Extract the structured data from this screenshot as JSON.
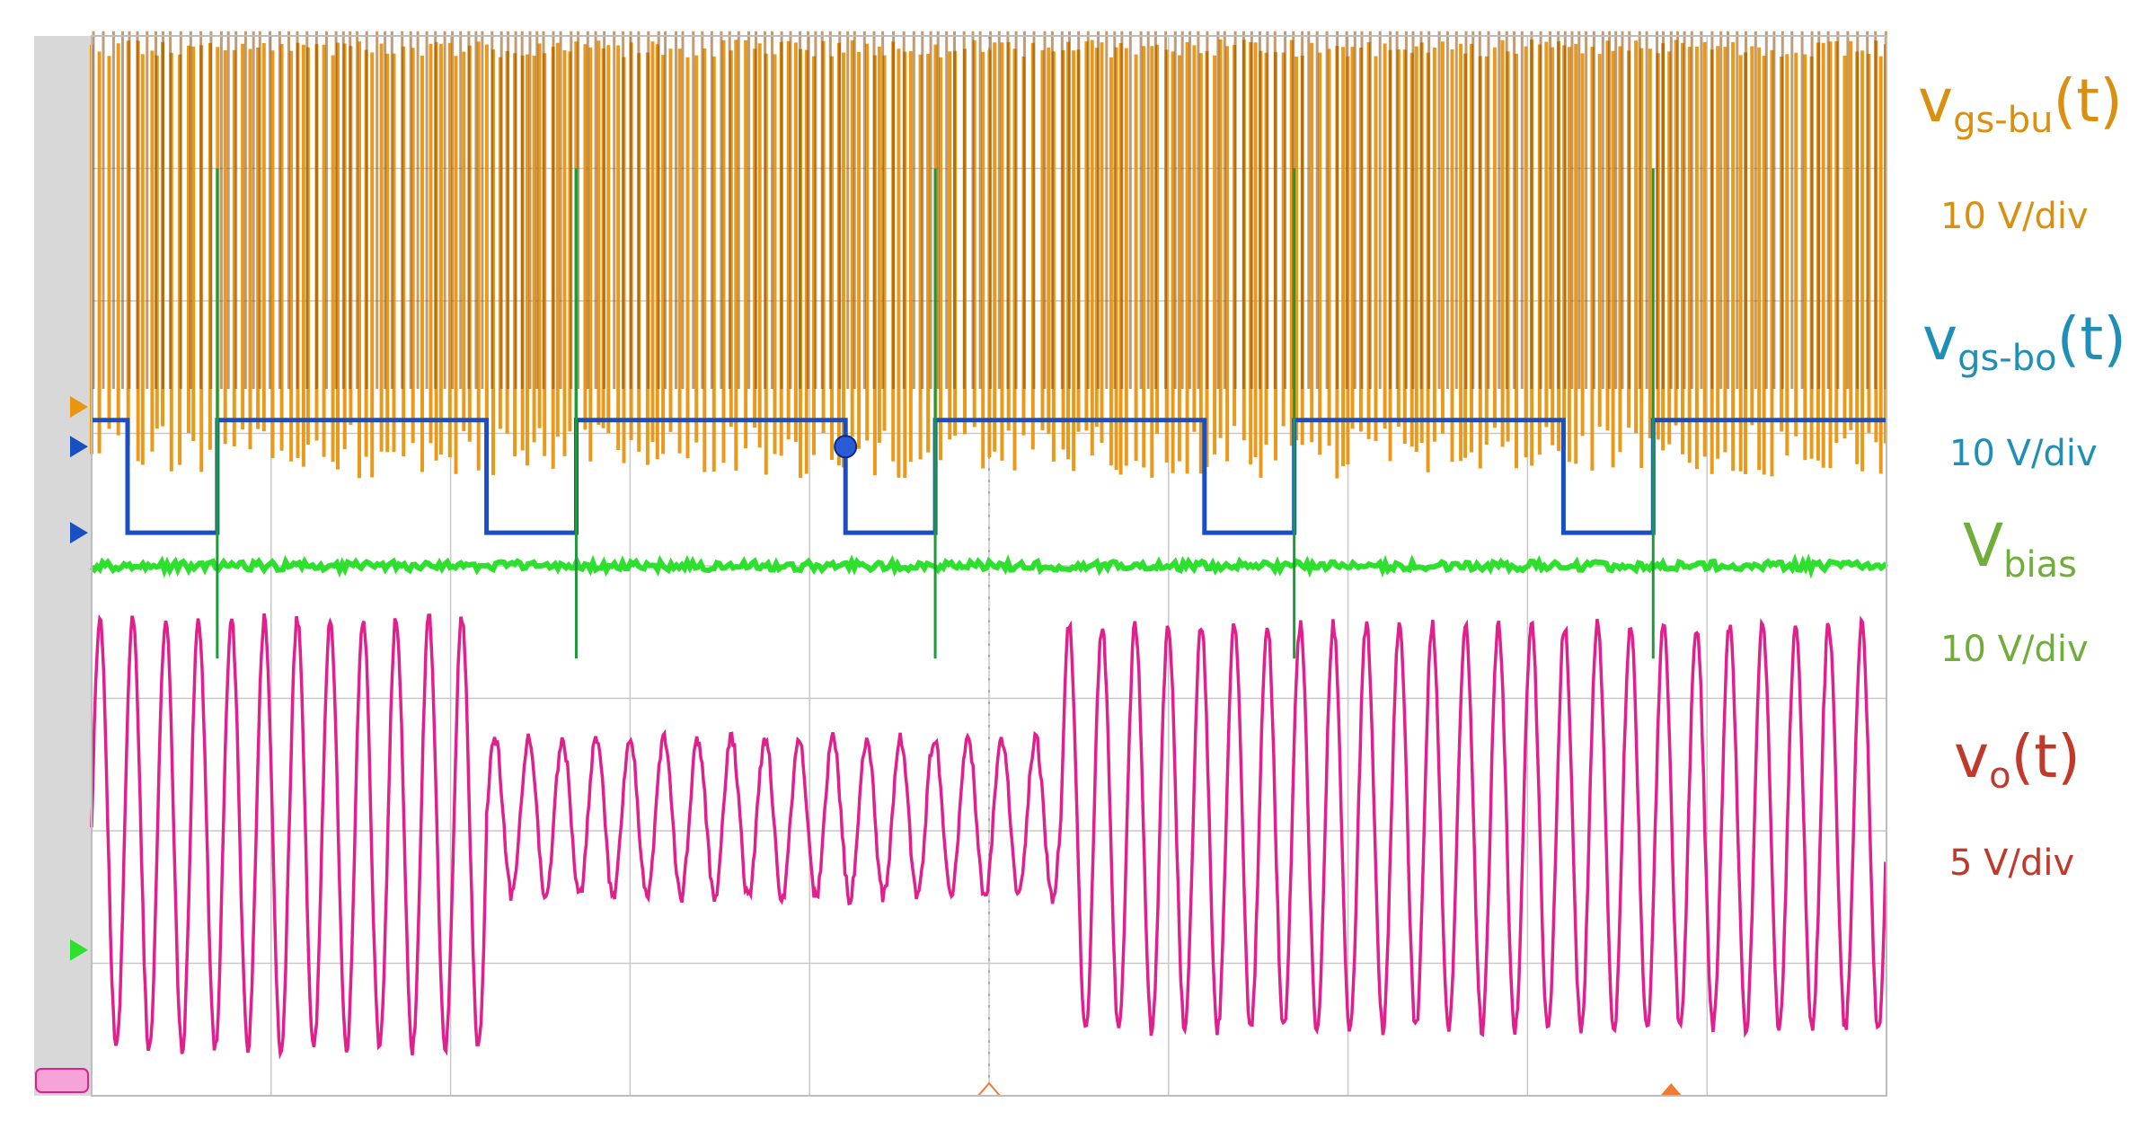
{
  "chart_data": {
    "type": "line",
    "title": "",
    "xlabel": "",
    "ylabel": "",
    "grid": true,
    "grid_divisions": {
      "x": 10,
      "y": 8
    },
    "channels": [
      {
        "id": "ch1",
        "symbol_main": "v",
        "symbol_sub": "gs-bu",
        "symbol_suffix": "(t)",
        "scale": "10 V/div",
        "color": "#e8950f",
        "description_pattern": "high-frequency PWM gate pulses",
        "level_low_div": 5.2,
        "level_high_div": 7.9
      },
      {
        "id": "ch2",
        "symbol_main": "v",
        "symbol_sub": "gs-bo",
        "symbol_suffix": "(t)",
        "scale": "10 V/div",
        "color": "#1a4fc4",
        "level_high_div": 5.1,
        "level_low_div": 4.25,
        "transitions_x_div": [
          0.2,
          0.7,
          2.2,
          2.7,
          4.2,
          4.7,
          6.2,
          6.7,
          8.2,
          8.7
        ],
        "start_state": "high"
      },
      {
        "id": "ch3",
        "symbol_main": "V",
        "symbol_sub": "bias",
        "symbol_suffix": "",
        "scale": "10 V/div",
        "color": "#2ee02e",
        "level_div": 4.0
      },
      {
        "id": "ch4",
        "symbol_main": "v",
        "symbol_sub": "o",
        "symbol_suffix": "(t)",
        "scale": "5 V/div",
        "color": "#e0208c",
        "segments": [
          {
            "x_start_div": 0.0,
            "x_end_div": 2.2,
            "low_div": 0.35,
            "high_div": 3.6,
            "cycles": 12
          },
          {
            "x_start_div": 2.2,
            "x_end_div": 5.4,
            "low_div": 1.5,
            "high_div": 2.7,
            "cycles": 17
          },
          {
            "x_start_div": 5.4,
            "x_end_div": 10.0,
            "low_div": 0.5,
            "high_div": 3.55,
            "cycles": 25
          }
        ]
      }
    ]
  },
  "labels": {
    "ch1": {
      "main": "v",
      "sub": "gs-bu",
      "suffix": "(t)",
      "scale": "10 V/div"
    },
    "ch2": {
      "main": "v",
      "sub": "gs-bo",
      "suffix": "(t)",
      "scale": "10 V/div"
    },
    "ch3": {
      "main": "V",
      "sub": "bias",
      "suffix": "",
      "scale": "10 V/div"
    },
    "ch4": {
      "main": "v",
      "sub": "o",
      "suffix": "(t)",
      "scale": "5 V/div"
    }
  },
  "colors": {
    "ch1_label": "#d9900f",
    "ch2_label": "#1f8fb5",
    "ch3_label": "#70ad3a",
    "ch4_label": "#c0392b",
    "grid": "#c8c8c8",
    "left_bar": "#d8d8d8"
  }
}
